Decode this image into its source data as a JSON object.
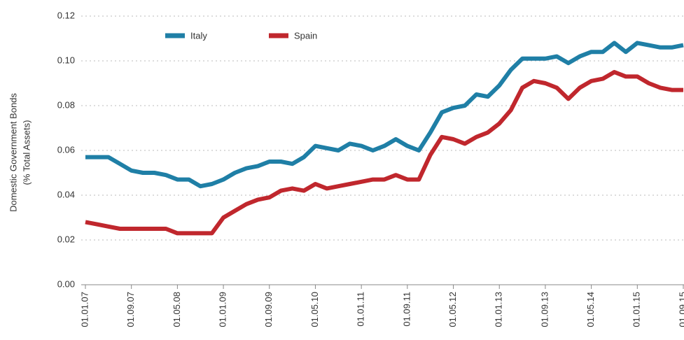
{
  "chart_data": {
    "type": "line",
    "y_label": [
      "Domestic Government Bonds",
      "(% Total Assets)"
    ],
    "categories": [
      "01.01.07",
      null,
      null,
      null,
      "01.09.07",
      null,
      null,
      null,
      "01.05.08",
      null,
      null,
      null,
      "01.01.09",
      null,
      null,
      null,
      "01.09.09",
      null,
      null,
      null,
      "01.05.10",
      null,
      null,
      null,
      "01.01.11",
      null,
      null,
      null,
      "01.09.11",
      null,
      null,
      null,
      "01.05.12",
      null,
      null,
      null,
      "01.01.13",
      null,
      null,
      null,
      "01.09.13",
      null,
      null,
      null,
      "01.05.14",
      null,
      null,
      null,
      "01.01.15",
      null,
      null,
      null,
      "01.09.15"
    ],
    "series": [
      {
        "name": "Italy",
        "color": "#1f7fa6",
        "values": [
          0.057,
          0.057,
          0.057,
          0.054,
          0.051,
          0.05,
          0.05,
          0.049,
          0.047,
          0.047,
          0.044,
          0.045,
          0.047,
          0.05,
          0.052,
          0.053,
          0.055,
          0.055,
          0.054,
          0.057,
          0.062,
          0.061,
          0.06,
          0.063,
          0.062,
          0.06,
          0.062,
          0.065,
          0.062,
          0.06,
          0.068,
          0.077,
          0.079,
          0.08,
          0.085,
          0.084,
          0.089,
          0.096,
          0.101,
          0.101,
          0.101,
          0.102,
          0.099,
          0.102,
          0.104,
          0.104,
          0.108,
          0.104,
          0.108,
          0.107,
          0.106,
          0.106,
          0.107
        ]
      },
      {
        "name": "Spain",
        "color": "#c0272d",
        "values": [
          0.028,
          0.027,
          0.026,
          0.025,
          0.025,
          0.025,
          0.025,
          0.025,
          0.023,
          0.023,
          0.023,
          0.023,
          0.03,
          0.033,
          0.036,
          0.038,
          0.039,
          0.042,
          0.043,
          0.042,
          0.045,
          0.043,
          0.044,
          0.045,
          0.046,
          0.047,
          0.047,
          0.049,
          0.047,
          0.047,
          0.058,
          0.066,
          0.065,
          0.063,
          0.066,
          0.068,
          0.072,
          0.078,
          0.088,
          0.091,
          0.09,
          0.088,
          0.083,
          0.088,
          0.091,
          0.092,
          0.095,
          0.093,
          0.093,
          0.09,
          0.088,
          0.087,
          0.087
        ]
      }
    ],
    "ylim": [
      0,
      0.12
    ],
    "yticks": [
      {
        "value": 0,
        "label": "0.00"
      },
      {
        "value": 0.02,
        "label": "0.02"
      },
      {
        "value": 0.04,
        "label": "0.04"
      },
      {
        "value": 0.06,
        "label": "0.06"
      },
      {
        "value": 0.08,
        "label": "0.08"
      },
      {
        "value": 0.1,
        "label": "0.10"
      },
      {
        "value": 0.12,
        "label": "0.12"
      }
    ],
    "grid": true,
    "legend": "top"
  }
}
